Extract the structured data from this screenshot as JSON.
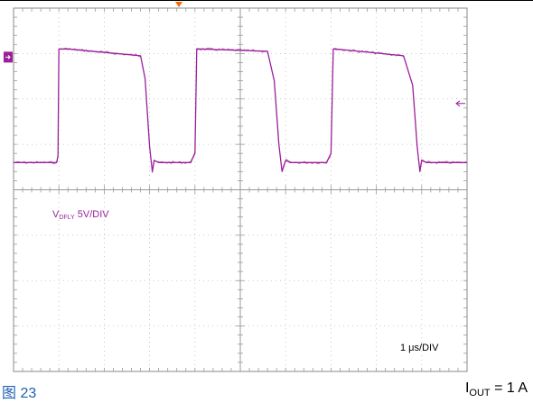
{
  "chart_data": {
    "type": "line",
    "title": "",
    "xlabel": "",
    "ylabel": "",
    "grid": true,
    "divisions": {
      "x": 10,
      "y": 8
    },
    "timebase_label": "1 μs/DIV",
    "timebase_us_per_div": 1,
    "xlim_us": [
      0,
      10
    ],
    "ylim_div": [
      -8,
      0
    ],
    "channel": {
      "name_main": "V",
      "name_sub": "DFLY",
      "scale": "5V/DIV",
      "color": "#9b1f9b"
    },
    "series": [
      {
        "name": "VDFLY",
        "unit": "div",
        "x": [
          0.0,
          0.95,
          0.98,
          1.0,
          1.2,
          2.8,
          2.9,
          3.0,
          3.06,
          3.1,
          3.2,
          3.9,
          4.0,
          4.04,
          4.1,
          5.6,
          5.75,
          5.85,
          5.92,
          6.0,
          6.1,
          6.9,
          7.0,
          7.05,
          7.1,
          8.6,
          8.8,
          8.9,
          8.96,
          9.0,
          9.1,
          10.0
        ],
        "y": [
          -3.4,
          -3.4,
          -3.25,
          -0.9,
          -0.9,
          -1.05,
          -1.55,
          -3.05,
          -3.6,
          -3.35,
          -3.4,
          -3.4,
          -3.2,
          -0.9,
          -0.9,
          -0.95,
          -1.6,
          -3.0,
          -3.6,
          -3.35,
          -3.4,
          -3.4,
          -3.2,
          -0.9,
          -0.9,
          -1.05,
          -1.7,
          -3.05,
          -3.6,
          -3.35,
          -3.4,
          -3.4
        ]
      }
    ],
    "markers": {
      "trigger_top": {
        "color": "#ff6600"
      },
      "channel_ref": {
        "color": "#9b1f9b"
      },
      "trigger_level": {
        "color": "#9b1f9b"
      }
    }
  },
  "figure": {
    "label": "图 23",
    "label_color": "#1f5fae",
    "condition_main": "I",
    "condition_sub": "OUT",
    "condition_rest": " = 1 A"
  }
}
